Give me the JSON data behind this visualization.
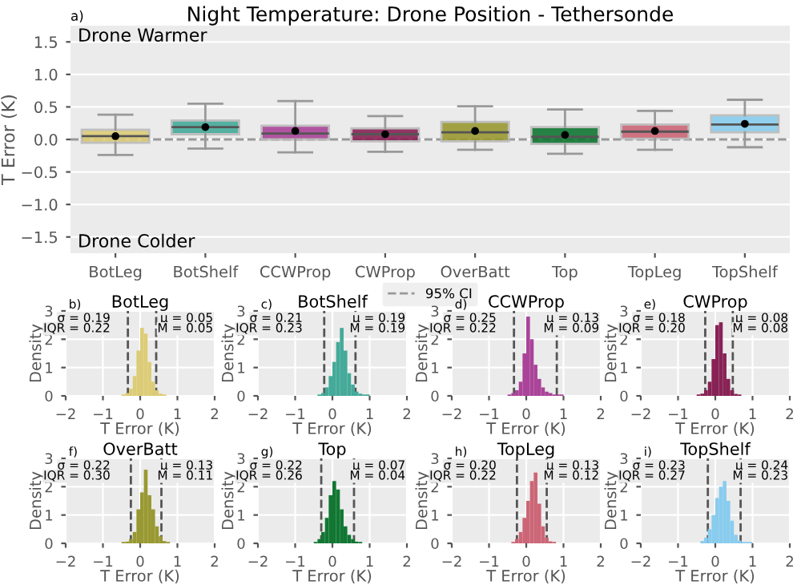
{
  "chart_data": [
    {
      "type": "box",
      "title": "Night Temperature: Drone Position - Tethersonde",
      "ylabel": "T Error (K)",
      "categories": [
        "BotLeg",
        "BotShelf",
        "CCWProp",
        "CWProp",
        "OverBatt",
        "Top",
        "TopLeg",
        "TopShelf"
      ],
      "colors": [
        "#ddcc77",
        "#44aa99",
        "#aa4499",
        "#882255",
        "#999933",
        "#117733",
        "#cc6677",
        "#88ccee"
      ],
      "boxes": [
        {
          "low": -0.24,
          "q1": -0.05,
          "median": 0.05,
          "q3": 0.15,
          "high": 0.38,
          "mean": 0.05
        },
        {
          "low": -0.14,
          "q1": 0.08,
          "median": 0.19,
          "q3": 0.29,
          "high": 0.55,
          "mean": 0.19
        },
        {
          "low": -0.2,
          "q1": 0.0,
          "median": 0.09,
          "q3": 0.21,
          "high": 0.59,
          "mean": 0.13
        },
        {
          "low": -0.19,
          "q1": -0.03,
          "median": 0.08,
          "q3": 0.17,
          "high": 0.36,
          "mean": 0.08
        },
        {
          "low": -0.16,
          "q1": -0.03,
          "median": 0.11,
          "q3": 0.27,
          "high": 0.51,
          "mean": 0.13
        },
        {
          "low": -0.22,
          "q1": -0.07,
          "median": 0.04,
          "q3": 0.19,
          "high": 0.46,
          "mean": 0.07
        },
        {
          "low": -0.16,
          "q1": 0.01,
          "median": 0.12,
          "q3": 0.23,
          "high": 0.44,
          "mean": 0.13
        },
        {
          "low": -0.12,
          "q1": 0.11,
          "median": 0.23,
          "q3": 0.37,
          "high": 0.61,
          "mean": 0.24
        }
      ],
      "ylim": [
        -1.75,
        1.75
      ],
      "yticks": [
        {
          "value": -1.5,
          "label": "−1.5"
        },
        {
          "value": -1,
          "label": "−1.0"
        },
        {
          "value": -0.5,
          "label": "−0.5"
        },
        {
          "value": 0,
          "label": "0.0"
        },
        {
          "value": 0.5,
          "label": "0.5"
        },
        {
          "value": 1,
          "label": "1.0"
        },
        {
          "value": 1.5,
          "label": "1.5"
        }
      ],
      "grid": "y",
      "ref_lines": [
        {
          "axis": "y",
          "value": 0,
          "label": "95% CI",
          "color": "#999999",
          "line_style": "dashed"
        }
      ],
      "legend": "bottom",
      "annotations": [
        "a)",
        "Drone Warmer",
        "Drone Colder"
      ]
    },
    {
      "type": "histogram",
      "title": "BotLeg",
      "xlabel": "T Error (K)",
      "ylabel": "Density",
      "color": "#ddcc77",
      "bins": [
        -0.5,
        -0.4,
        -0.3,
        -0.2,
        -0.1,
        0.0,
        0.1,
        0.2,
        0.3,
        0.4,
        0.5,
        0.6,
        0.7
      ],
      "values": [
        0.05,
        0.1,
        0.25,
        0.7,
        1.6,
        2.4,
        2.2,
        1.2,
        0.5,
        0.2,
        0.08,
        0.05
      ],
      "xlim": [
        -2,
        2
      ],
      "xticks": [
        -2,
        -1,
        0,
        1,
        2
      ],
      "ylim": [
        0,
        3
      ],
      "yticks": [
        0,
        1,
        2,
        3
      ],
      "grid": true,
      "ref_lines": [
        {
          "axis": "x",
          "value": -0.33,
          "color": "#555555",
          "line_style": "dashed"
        },
        {
          "axis": "x",
          "value": 0.43,
          "color": "#555555",
          "line_style": "dashed"
        }
      ],
      "annotations": [
        "b)",
        "σ = 0.19",
        "IQR = 0.22",
        "μ = 0.05",
        "M = 0.05"
      ]
    },
    {
      "type": "histogram",
      "title": "BotShelf",
      "xlabel": "T Error (K)",
      "ylabel": "Density",
      "color": "#44aa99",
      "bins": [
        -0.4,
        -0.3,
        -0.2,
        -0.1,
        0.0,
        0.1,
        0.2,
        0.3,
        0.4,
        0.5,
        0.6,
        0.7,
        0.8,
        0.9,
        1.0
      ],
      "values": [
        0.05,
        0.1,
        0.3,
        0.7,
        1.2,
        1.9,
        2.4,
        1.6,
        0.8,
        0.4,
        0.15,
        0.08,
        0.05,
        0.05
      ],
      "xlim": [
        -2,
        2
      ],
      "xticks": [
        -2,
        -1,
        0,
        1,
        2
      ],
      "ylim": [
        0,
        3
      ],
      "yticks": [
        0,
        1,
        2,
        3
      ],
      "grid": true,
      "ref_lines": [
        {
          "axis": "x",
          "value": -0.22,
          "color": "#555555",
          "line_style": "dashed"
        },
        {
          "axis": "x",
          "value": 0.62,
          "color": "#555555",
          "line_style": "dashed"
        }
      ],
      "annotations": [
        "c)",
        "σ = 0.21",
        "IQR = 0.23",
        "μ = 0.19",
        "M = 0.19"
      ]
    },
    {
      "type": "histogram",
      "title": "CCWProp",
      "xlabel": "T Error (K)",
      "ylabel": "Density",
      "color": "#aa4499",
      "bins": [
        -0.5,
        -0.4,
        -0.3,
        -0.2,
        -0.1,
        0.0,
        0.1,
        0.2,
        0.3,
        0.4,
        0.5,
        0.6,
        0.7,
        0.8,
        0.9,
        1.0
      ],
      "values": [
        0.05,
        0.1,
        0.2,
        0.5,
        1.5,
        2.8,
        2.0,
        1.1,
        0.6,
        0.3,
        0.15,
        0.1,
        0.05,
        0.05,
        0.05
      ],
      "xlim": [
        -2,
        2
      ],
      "xticks": [
        -2,
        -1,
        0,
        1,
        2
      ],
      "ylim": [
        0,
        3
      ],
      "yticks": [
        0,
        1,
        2,
        3
      ],
      "grid": true,
      "ref_lines": [
        {
          "axis": "x",
          "value": -0.33,
          "color": "#555555",
          "line_style": "dashed"
        },
        {
          "axis": "x",
          "value": 0.82,
          "color": "#555555",
          "line_style": "dashed"
        }
      ],
      "annotations": [
        "d)",
        "σ = 0.25",
        "IQR = 0.22",
        "μ = 0.13",
        "M = 0.09"
      ]
    },
    {
      "type": "histogram",
      "title": "CWProp",
      "xlabel": "T Error (K)",
      "ylabel": "Density",
      "color": "#882255",
      "bins": [
        -0.5,
        -0.4,
        -0.3,
        -0.2,
        -0.1,
        0.0,
        0.1,
        0.2,
        0.3,
        0.4,
        0.5,
        0.6,
        0.7
      ],
      "values": [
        0.05,
        0.08,
        0.2,
        0.5,
        1.3,
        2.5,
        2.6,
        1.5,
        0.6,
        0.2,
        0.07,
        0.05
      ],
      "xlim": [
        -2,
        2
      ],
      "xticks": [
        -2,
        -1,
        0,
        1,
        2
      ],
      "ylim": [
        0,
        3
      ],
      "yticks": [
        0,
        1,
        2,
        3
      ],
      "grid": true,
      "ref_lines": [
        {
          "axis": "x",
          "value": -0.27,
          "color": "#555555",
          "line_style": "dashed"
        },
        {
          "axis": "x",
          "value": 0.47,
          "color": "#555555",
          "line_style": "dashed"
        }
      ],
      "annotations": [
        "e)",
        "σ = 0.18",
        "IQR = 0.20",
        "μ = 0.08",
        "M = 0.08"
      ]
    },
    {
      "type": "histogram",
      "title": "OverBatt",
      "xlabel": "T Error (K)",
      "ylabel": "Density",
      "color": "#999933",
      "bins": [
        -0.5,
        -0.4,
        -0.3,
        -0.2,
        -0.1,
        0.0,
        0.1,
        0.2,
        0.3,
        0.4,
        0.5,
        0.6,
        0.7,
        0.8
      ],
      "values": [
        0.05,
        0.06,
        0.15,
        0.4,
        1.2,
        1.8,
        2.6,
        1.7,
        1.2,
        0.6,
        0.25,
        0.08,
        0.05
      ],
      "xlim": [
        -2,
        2
      ],
      "xticks": [
        -2,
        -1,
        0,
        1,
        2
      ],
      "ylim": [
        0,
        3
      ],
      "yticks": [
        0,
        1,
        2,
        3
      ],
      "grid": true,
      "ref_lines": [
        {
          "axis": "x",
          "value": -0.25,
          "color": "#555555",
          "line_style": "dashed"
        },
        {
          "axis": "x",
          "value": 0.57,
          "color": "#555555",
          "line_style": "dashed"
        }
      ],
      "annotations": [
        "f)",
        "σ = 0.22",
        "IQR = 0.30",
        "μ = 0.13",
        "M = 0.11"
      ]
    },
    {
      "type": "histogram",
      "title": "Top",
      "xlabel": "T Error (K)",
      "ylabel": "Density",
      "color": "#117733",
      "bins": [
        -0.5,
        -0.4,
        -0.3,
        -0.2,
        -0.1,
        0.0,
        0.1,
        0.2,
        0.3,
        0.4,
        0.5,
        0.6,
        0.7,
        0.8
      ],
      "values": [
        0.05,
        0.15,
        0.4,
        0.9,
        1.7,
        2.2,
        1.9,
        1.2,
        0.6,
        0.3,
        0.15,
        0.06,
        0.05
      ],
      "xlim": [
        -2,
        2
      ],
      "xticks": [
        -2,
        -1,
        0,
        1,
        2
      ],
      "ylim": [
        0,
        3
      ],
      "yticks": [
        0,
        1,
        2,
        3
      ],
      "grid": true,
      "ref_lines": [
        {
          "axis": "x",
          "value": -0.3,
          "color": "#555555",
          "line_style": "dashed"
        },
        {
          "axis": "x",
          "value": 0.58,
          "color": "#555555",
          "line_style": "dashed"
        }
      ],
      "annotations": [
        "g)",
        "σ = 0.22",
        "IQR = 0.26",
        "μ = 0.07",
        "M = 0.04"
      ]
    },
    {
      "type": "histogram",
      "title": "TopLeg",
      "xlabel": "T Error (K)",
      "ylabel": "Density",
      "color": "#cc6677",
      "bins": [
        -0.4,
        -0.3,
        -0.2,
        -0.1,
        0.0,
        0.1,
        0.2,
        0.3,
        0.4,
        0.5,
        0.6,
        0.7,
        0.8
      ],
      "values": [
        0.05,
        0.15,
        0.4,
        0.9,
        1.5,
        2.2,
        2.5,
        1.4,
        0.6,
        0.2,
        0.07,
        0.05
      ],
      "xlim": [
        -2,
        2
      ],
      "xticks": [
        -2,
        -1,
        0,
        1,
        2
      ],
      "ylim": [
        0,
        3
      ],
      "yticks": [
        0,
        1,
        2,
        3
      ],
      "grid": true,
      "ref_lines": [
        {
          "axis": "x",
          "value": -0.25,
          "color": "#555555",
          "line_style": "dashed"
        },
        {
          "axis": "x",
          "value": 0.55,
          "color": "#555555",
          "line_style": "dashed"
        }
      ],
      "annotations": [
        "h)",
        "σ = 0.20",
        "IQR = 0.22",
        "μ = 0.13",
        "M = 0.12"
      ]
    },
    {
      "type": "histogram",
      "title": "TopShelf",
      "xlabel": "T Error (K)",
      "ylabel": "Density",
      "color": "#88ccee",
      "bins": [
        -0.4,
        -0.3,
        -0.2,
        -0.1,
        0.0,
        0.1,
        0.2,
        0.3,
        0.4,
        0.5,
        0.6,
        0.7,
        0.8,
        0.9,
        1.0
      ],
      "values": [
        0.08,
        0.2,
        0.5,
        1.0,
        1.6,
        2.0,
        2.2,
        1.5,
        0.8,
        0.3,
        0.1,
        0.05,
        0.05,
        0.05
      ],
      "xlim": [
        -2,
        2
      ],
      "xticks": [
        -2,
        -1,
        0,
        1,
        2
      ],
      "ylim": [
        0,
        3
      ],
      "yticks": [
        0,
        1,
        2,
        3
      ],
      "grid": true,
      "ref_lines": [
        {
          "axis": "x",
          "value": -0.2,
          "color": "#555555",
          "line_style": "dashed"
        },
        {
          "axis": "x",
          "value": 0.68,
          "color": "#555555",
          "line_style": "dashed"
        }
      ],
      "annotations": [
        "i)",
        "σ = 0.23",
        "IQR = 0.27",
        "μ = 0.24",
        "M = 0.23"
      ]
    }
  ]
}
